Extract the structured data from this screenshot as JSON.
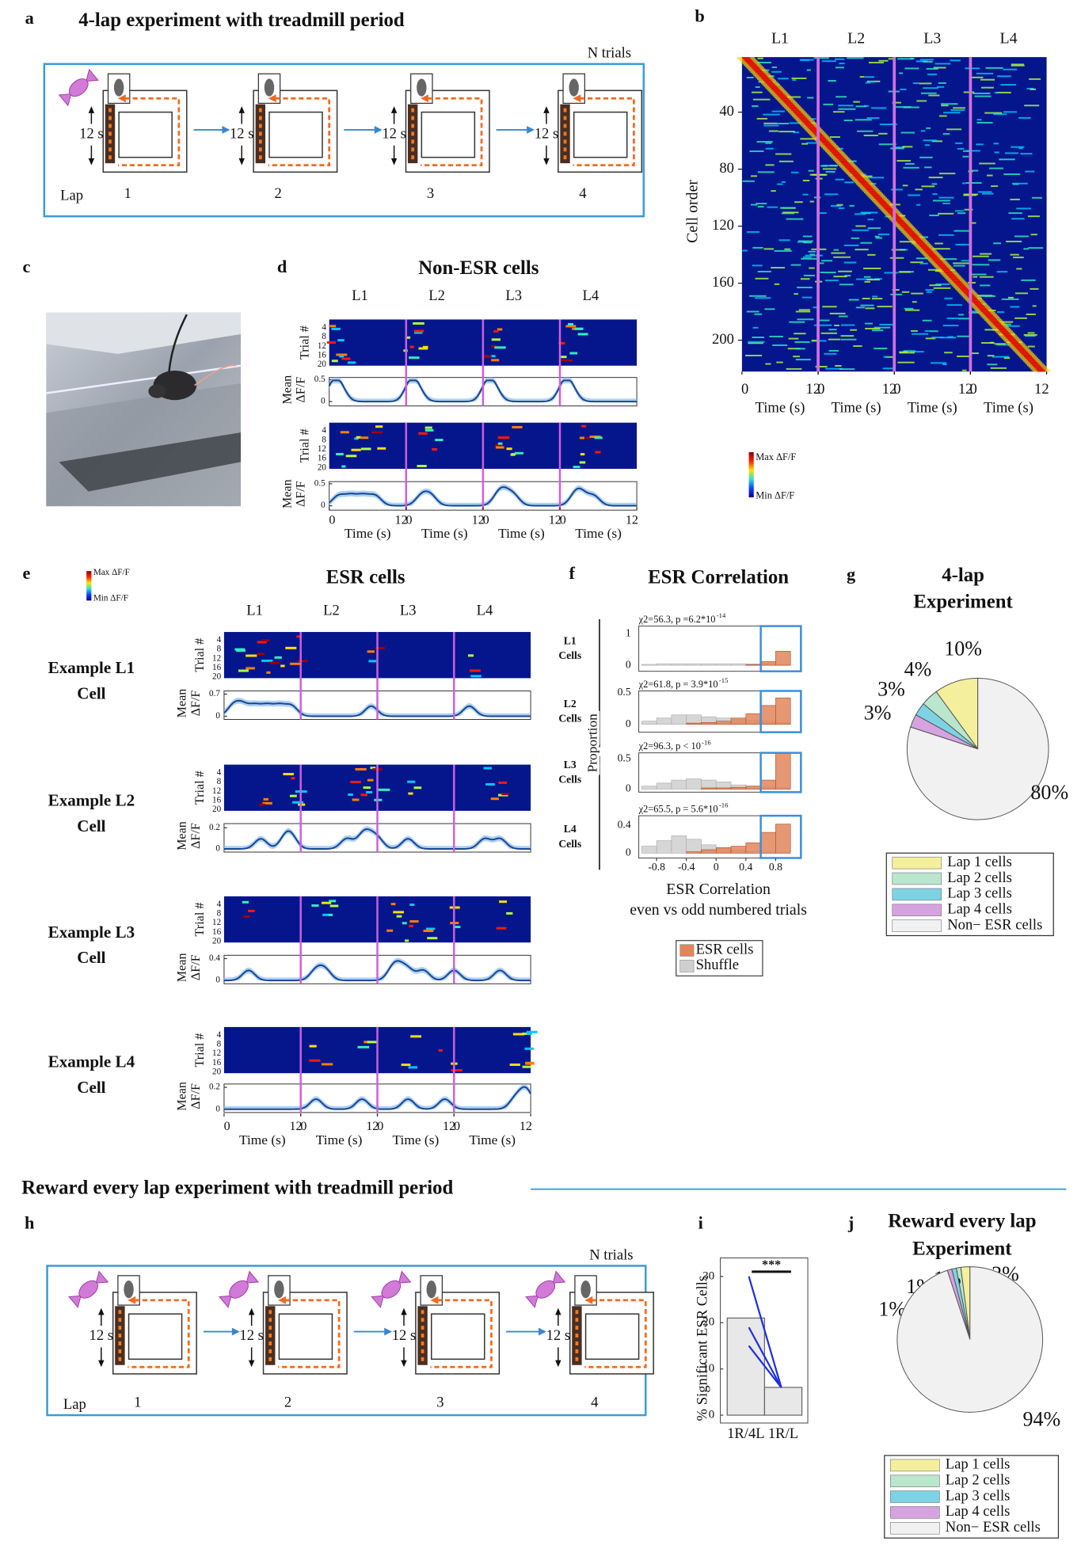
{
  "panel_a": {
    "letter": "a",
    "title": "4-lap experiment with treadmill period",
    "n_trials": "N trials",
    "duration": "12 s",
    "lap_label": "Lap",
    "laps": [
      "1",
      "2",
      "3",
      "4"
    ]
  },
  "panel_b": {
    "letter": "b",
    "laps": [
      "L1",
      "L2",
      "L3",
      "L4"
    ],
    "ylabel": "Cell order",
    "ylim": [
      0,
      222
    ],
    "yticks": [
      40,
      80,
      120,
      160,
      200
    ],
    "xlim": [
      0,
      12
    ],
    "xticks": [
      0,
      12
    ],
    "xlabel": "Time (s)",
    "colorbar": {
      "max": "Max ΔF/F",
      "min": "Min ΔF/F"
    }
  },
  "panel_c": {
    "letter": "c"
  },
  "panel_d": {
    "letter": "d",
    "title": "Non-ESR cells",
    "laps": [
      "L1",
      "L2",
      "L3",
      "L4"
    ],
    "trial_label": "Trial #",
    "trial_lim": [
      0,
      20
    ],
    "trial_ticks": [
      4,
      8,
      12,
      16,
      20
    ],
    "mean_label": [
      "Mean",
      "ΔF/F"
    ],
    "xlim": [
      0,
      12
    ],
    "xticks": [
      0,
      12
    ],
    "xlabel": "Time (s)",
    "cells": [
      {
        "ylim": [
          -0.1,
          0.55
        ],
        "yticks": [
          0,
          0.5
        ]
      },
      {
        "ylim": [
          -0.1,
          0.55
        ],
        "yticks": [
          0,
          0.5
        ]
      }
    ]
  },
  "panel_e": {
    "letter": "e",
    "title": "ESR cells",
    "colorbar": {
      "max": "Max ΔF/F",
      "min": "Min ΔF/F"
    },
    "laps": [
      "L1",
      "L2",
      "L3",
      "L4"
    ],
    "trial_label": "Trial #",
    "trial_lim": [
      0,
      20
    ],
    "trial_ticks": [
      4,
      8,
      12,
      16,
      20
    ],
    "mean_label": [
      "Mean",
      "ΔF/F"
    ],
    "xlim": [
      0,
      12
    ],
    "xticks": [
      0,
      12
    ],
    "xlabel": "Time (s)",
    "cells": [
      {
        "label": [
          "Example L1",
          "Cell"
        ],
        "ylim": [
          -0.1,
          0.8
        ],
        "yticks": [
          0,
          0.7
        ]
      },
      {
        "label": [
          "Example L2",
          "Cell"
        ],
        "ylim": [
          -0.03,
          0.24
        ],
        "yticks": [
          0,
          0.2
        ]
      },
      {
        "label": [
          "Example L3",
          "Cell"
        ],
        "ylim": [
          -0.06,
          0.46
        ],
        "yticks": [
          0,
          0.4
        ]
      },
      {
        "label": [
          "Example L4",
          "Cell"
        ],
        "ylim": [
          -0.03,
          0.23
        ],
        "yticks": [
          0,
          0.2
        ]
      }
    ]
  },
  "panel_f": {
    "letter": "f",
    "type": "histogram",
    "title": "ESR Correlation",
    "ylabel": "Proportion",
    "xlabel": [
      "ESR Correlation",
      "even vs odd numbered trials"
    ],
    "bins": [
      -1,
      -0.8,
      -0.6,
      -0.4,
      -0.2,
      0,
      0.2,
      0.4,
      0.6,
      0.8,
      1
    ],
    "xlim": [
      -1.04,
      1.14
    ],
    "xticks": [
      -0.8,
      -0.4,
      0,
      0.4,
      0.8
    ],
    "rows": [
      {
        "label": [
          "L1",
          "Cells"
        ],
        "stat": "χ2=56.3, p =6.2*10",
        "exponent": "-14",
        "ylim": [
          -0.19,
          1.25
        ],
        "yticks": [
          0,
          1
        ],
        "series": [
          {
            "name": "ESR cells",
            "color": "#e0865a",
            "values": [
              0,
              0,
              0,
              0,
              0,
              0,
              0,
              0.02,
              0.12,
              0.45
            ]
          },
          {
            "name": "Shuffle",
            "color": "#cfcfcf",
            "values": [
              0.03,
              0.05,
              0.05,
              0.05,
              0.05,
              0.05,
              0.05,
              0.05,
              0.05,
              0.03
            ]
          }
        ]
      },
      {
        "label": [
          "L2",
          "Cells"
        ],
        "stat": "χ2=61.8, p = 3.9*10",
        "exponent": "-15",
        "ylim": [
          -0.125,
          0.53
        ],
        "yticks": [
          0,
          0.5
        ],
        "series": [
          {
            "name": "ESR cells",
            "color": "#e0865a",
            "values": [
              0,
              0,
              0,
              0.02,
              0.03,
              0.05,
              0.1,
              0.17,
              0.3,
              0.42
            ]
          },
          {
            "name": "Shuffle",
            "color": "#cfcfcf",
            "values": [
              0.05,
              0.1,
              0.15,
              0.15,
              0.12,
              0.1,
              0.08,
              0.06,
              0.05,
              0.03
            ]
          }
        ]
      },
      {
        "label": [
          "L3",
          "Cells"
        ],
        "stat": "χ2=96.3, p < 10",
        "exponent": "-16",
        "ylim": [
          -0.05,
          0.6
        ],
        "yticks": [
          0,
          0.5
        ],
        "series": [
          {
            "name": "ESR cells",
            "color": "#e0865a",
            "values": [
              0,
              0,
              0,
              0,
              0.02,
              0.02,
              0.03,
              0.05,
              0.15,
              0.6
            ]
          },
          {
            "name": "Shuffle",
            "color": "#cfcfcf",
            "values": [
              0.05,
              0.1,
              0.15,
              0.17,
              0.15,
              0.12,
              0.07,
              0.05,
              0.04,
              0.02
            ]
          }
        ]
      },
      {
        "label": [
          "L4",
          "Cells"
        ],
        "stat": "χ2=65.5, p = 5.6*10",
        "exponent": "-16",
        "ylim": [
          -0.07,
          0.54
        ],
        "yticks": [
          0,
          0.4
        ],
        "series": [
          {
            "name": "ESR cells",
            "color": "#e0865a",
            "values": [
              0,
              0,
              0,
              0.02,
              0.05,
              0.08,
              0.1,
              0.15,
              0.3,
              0.42
            ]
          },
          {
            "name": "Shuffle",
            "color": "#cfcfcf",
            "values": [
              0.1,
              0.18,
              0.25,
              0.2,
              0.12,
              0.07,
              0.04,
              0.02,
              0.01,
              0.01
            ]
          }
        ]
      }
    ]
  },
  "panel_g": {
    "letter": "g",
    "type": "pie",
    "title": [
      "4-lap",
      "Experiment"
    ],
    "categories": [
      "Lap 1 cells",
      "Lap 2 cells",
      "Lap 3 cells",
      "Lap 4 cells",
      "Non− ESR cells"
    ],
    "values": [
      10,
      4,
      3,
      3,
      80
    ],
    "value_labels": [
      "10%",
      "4%",
      "3%",
      "3%",
      "80%"
    ],
    "colors": [
      "#f4ef9c",
      "#b9e6cc",
      "#7dd3e3",
      "#d6a3e1",
      "#f1f1f1"
    ]
  },
  "panel_h": {
    "letter": "h",
    "heading": "Reward every lap experiment with treadmill period",
    "n_trials": "N trials",
    "duration": "12 s",
    "lap_label": "Lap",
    "laps": [
      "1",
      "2",
      "3",
      "4"
    ]
  },
  "panel_i": {
    "letter": "i",
    "type": "bar",
    "ylabel": "% Significant ESR Cells",
    "categories": [
      "1R/4L",
      "1R/L"
    ],
    "values": [
      21,
      6
    ],
    "pairs": [
      [
        30,
        6
      ],
      [
        19,
        6
      ],
      [
        15,
        6
      ]
    ],
    "significance": "***",
    "ylim": [
      0,
      34
    ],
    "yticks": [
      0,
      10,
      20,
      30
    ]
  },
  "panel_j": {
    "letter": "j",
    "type": "pie",
    "title": [
      "Reward every lap",
      "Experiment"
    ],
    "categories": [
      "Lap 1 cells",
      "Lap 2 cells",
      "Lap 3 cells",
      "Lap 4 cells",
      "Non− ESR cells"
    ],
    "values": [
      2,
      1,
      1,
      1,
      94
    ],
    "value_labels": [
      "2%",
      "1%",
      "1%",
      "1%",
      "94%"
    ],
    "colors": [
      "#f4ef9c",
      "#b9e6cc",
      "#7dd3e3",
      "#d6a3e1",
      "#f1f1f1"
    ]
  }
}
